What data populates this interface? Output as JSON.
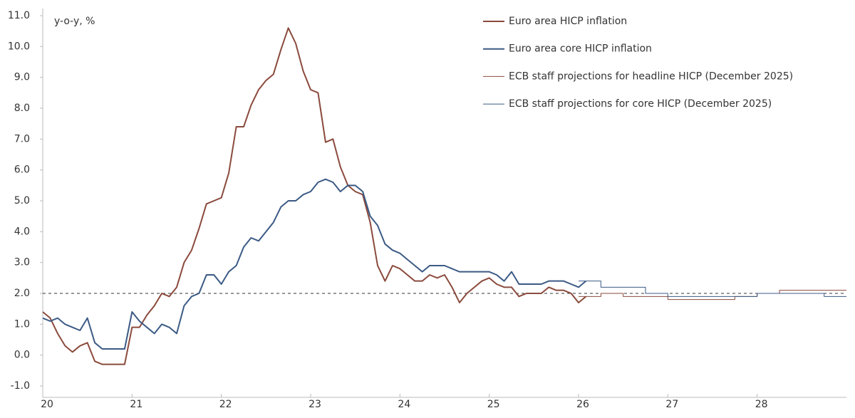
{
  "chart_data": {
    "type": "line",
    "y_label": "y-o-y, %",
    "xlim": [
      20,
      29
    ],
    "xticks": [
      20,
      21,
      22,
      23,
      24,
      25,
      26,
      27,
      28
    ],
    "ylim": [
      -1,
      11
    ],
    "yticks": [
      {
        "value": -1,
        "label": "-1.0"
      },
      {
        "value": 0,
        "label": "0.0"
      },
      {
        "value": 1,
        "label": "1.0"
      },
      {
        "value": 2,
        "label": "2.0"
      },
      {
        "value": 3,
        "label": "3.0"
      },
      {
        "value": 4,
        "label": "4.0"
      },
      {
        "value": 5,
        "label": "5.0"
      },
      {
        "value": 6,
        "label": "6.0"
      },
      {
        "value": 7,
        "label": "7.0"
      },
      {
        "value": 8,
        "label": "8.0"
      },
      {
        "value": 9,
        "label": "9.0"
      },
      {
        "value": 10,
        "label": "10.0"
      },
      {
        "value": 11,
        "label": "11.0"
      }
    ],
    "hline": 2,
    "series": [
      {
        "name": "Euro area HICP inflation",
        "color": "#8a4a3c",
        "width": 2,
        "step": false,
        "x": [
          20,
          20.083,
          20.167,
          20.25,
          20.333,
          20.417,
          20.5,
          20.583,
          20.667,
          20.75,
          20.833,
          20.917,
          21,
          21.083,
          21.167,
          21.25,
          21.333,
          21.417,
          21.5,
          21.583,
          21.667,
          21.75,
          21.833,
          21.917,
          22,
          22.083,
          22.167,
          22.25,
          22.333,
          22.417,
          22.5,
          22.583,
          22.667,
          22.75,
          22.833,
          22.917,
          23,
          23.083,
          23.167,
          23.25,
          23.333,
          23.417,
          23.5,
          23.583,
          23.667,
          23.75,
          23.833,
          23.917,
          24,
          24.083,
          24.167,
          24.25,
          24.333,
          24.417,
          24.5,
          24.583,
          24.667,
          24.75,
          24.833,
          24.917,
          25,
          25.083,
          25.167,
          25.25,
          25.333,
          25.417,
          25.5,
          25.583,
          25.667,
          25.75,
          25.833,
          25.917,
          26,
          26.083
        ],
        "values": [
          1.4,
          1.2,
          0.7,
          0.3,
          0.1,
          0.3,
          0.4,
          -0.2,
          -0.3,
          -0.3,
          -0.3,
          -0.3,
          0.9,
          0.9,
          1.3,
          1.6,
          2.0,
          1.9,
          2.2,
          3.0,
          3.4,
          4.1,
          4.9,
          5.0,
          5.1,
          5.9,
          7.4,
          7.4,
          8.1,
          8.6,
          8.9,
          9.1,
          9.9,
          10.6,
          10.1,
          9.2,
          8.6,
          8.5,
          6.9,
          7.0,
          6.1,
          5.5,
          5.3,
          5.2,
          4.3,
          2.9,
          2.4,
          2.9,
          2.8,
          2.6,
          2.4,
          2.4,
          2.6,
          2.5,
          2.6,
          2.2,
          1.7,
          2.0,
          2.2,
          2.4,
          2.5,
          2.3,
          2.2,
          2.2,
          1.9,
          2.0,
          2.0,
          2.0,
          2.2,
          2.1,
          2.1,
          2.0,
          1.7,
          1.9
        ]
      },
      {
        "name": "Euro area core HICP inflation",
        "color": "#3b5a85",
        "width": 2,
        "step": false,
        "x": [
          20,
          20.083,
          20.167,
          20.25,
          20.333,
          20.417,
          20.5,
          20.583,
          20.667,
          20.75,
          20.833,
          20.917,
          21,
          21.083,
          21.167,
          21.25,
          21.333,
          21.417,
          21.5,
          21.583,
          21.667,
          21.75,
          21.833,
          21.917,
          22,
          22.083,
          22.167,
          22.25,
          22.333,
          22.417,
          22.5,
          22.583,
          22.667,
          22.75,
          22.833,
          22.917,
          23,
          23.083,
          23.167,
          23.25,
          23.333,
          23.417,
          23.5,
          23.583,
          23.667,
          23.75,
          23.833,
          23.917,
          24,
          24.083,
          24.167,
          24.25,
          24.333,
          24.417,
          24.5,
          24.583,
          24.667,
          24.75,
          24.833,
          24.917,
          25,
          25.083,
          25.167,
          25.25,
          25.333,
          25.417,
          25.5,
          25.583,
          25.667,
          25.75,
          25.833,
          25.917,
          26,
          26.083
        ],
        "values": [
          1.2,
          1.1,
          1.2,
          1.0,
          0.9,
          0.8,
          1.2,
          0.4,
          0.2,
          0.2,
          0.2,
          0.2,
          1.4,
          1.1,
          0.9,
          0.7,
          1.0,
          0.9,
          0.7,
          1.6,
          1.9,
          2.0,
          2.6,
          2.6,
          2.3,
          2.7,
          2.9,
          3.5,
          3.8,
          3.7,
          4.0,
          4.3,
          4.8,
          5.0,
          5.0,
          5.2,
          5.3,
          5.6,
          5.7,
          5.6,
          5.3,
          5.5,
          5.5,
          5.3,
          4.5,
          4.2,
          3.6,
          3.4,
          3.3,
          3.1,
          2.9,
          2.7,
          2.9,
          2.9,
          2.9,
          2.8,
          2.7,
          2.7,
          2.7,
          2.7,
          2.7,
          2.6,
          2.4,
          2.7,
          2.3,
          2.3,
          2.3,
          2.3,
          2.4,
          2.4,
          2.4,
          2.3,
          2.2,
          2.4
        ]
      },
      {
        "name": "ECB staff projections for headline HICP (December 2025)",
        "color": "#8a4a3c",
        "width": 1,
        "step": true,
        "x": [
          26,
          26.25,
          26.5,
          26.75,
          27,
          27.25,
          27.5,
          27.75,
          28,
          28.25,
          28.5,
          28.75,
          29
        ],
        "values": [
          1.9,
          2.0,
          1.9,
          1.9,
          1.8,
          1.8,
          1.8,
          1.9,
          2.0,
          2.1,
          2.1,
          2.1,
          2.1
        ]
      },
      {
        "name": "ECB staff projections for core HICP (December 2025)",
        "color": "#3b5a85",
        "width": 1,
        "step": true,
        "x": [
          26,
          26.25,
          26.5,
          26.75,
          27,
          27.25,
          27.5,
          27.75,
          28,
          28.25,
          28.5,
          28.75,
          29
        ],
        "values": [
          2.4,
          2.2,
          2.2,
          2.0,
          1.9,
          1.9,
          1.9,
          1.9,
          2.0,
          2.0,
          2.0,
          1.9,
          1.9
        ]
      }
    ]
  }
}
